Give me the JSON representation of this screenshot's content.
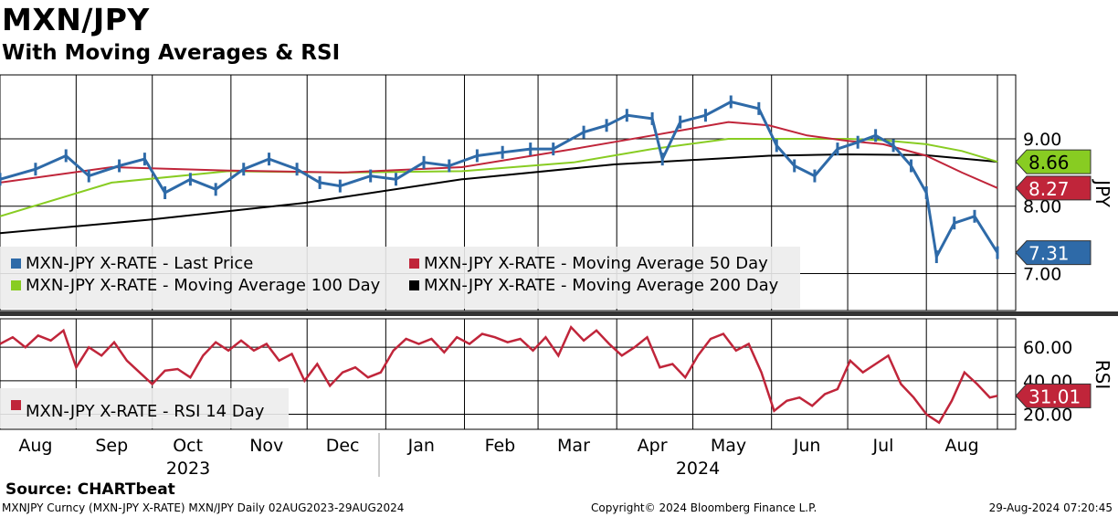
{
  "header": {
    "title": "MXN/JPY",
    "subtitle": "With Moving Averages & RSI"
  },
  "footer": {
    "source": "Source: CHARTbeat",
    "descriptor": "MXNJPY Curncy (MXN-JPY X-RATE) MXN/JPY  Daily 02AUG2023-29AUG2024",
    "copyright": "Copyright© 2024 Bloomberg Finance L.P.",
    "timestamp": "29-Aug-2024 07:20:45"
  },
  "colors": {
    "price": "#2e6aa8",
    "ma50": "#c0253a",
    "ma100": "#88cc22",
    "ma200": "#000000",
    "rsi": "#c0253a",
    "grid": "#000000"
  },
  "chart_data": [
    {
      "type": "line",
      "panel": "price",
      "y_axis_title": "JPY",
      "yticks": [
        7.0,
        8.0,
        9.0
      ],
      "ytick_labels": [
        "7.00",
        "8.00",
        "9.00"
      ],
      "ylim": [
        6.45,
        9.95
      ],
      "x_month_labels": [
        "Aug",
        "Sep",
        "Oct",
        "Nov",
        "Dec",
        "Jan",
        "Feb",
        "Mar",
        "Apr",
        "May",
        "Jun",
        "Jul",
        "Aug"
      ],
      "x_year_labels": [
        "2023",
        "2024"
      ],
      "legend": [
        {
          "label": "MXN-JPY X-RATE - Last Price",
          "color": "#2e6aa8"
        },
        {
          "label": "MXN-JPY X-RATE - Moving Average 50 Day",
          "color": "#c0253a"
        },
        {
          "label": "MXN-JPY X-RATE - Moving Average 100 Day",
          "color": "#88cc22"
        },
        {
          "label": "MXN-JPY X-RATE - Moving Average 200 Day",
          "color": "#000000"
        }
      ],
      "last_value_tags": [
        {
          "value": 8.66,
          "label": "8.66",
          "color": "#88cc22"
        },
        {
          "value": 8.27,
          "label": "8.27",
          "color": "#c0253a"
        },
        {
          "value": 7.31,
          "label": "7.31",
          "color": "#2e6aa8"
        }
      ],
      "series": [
        {
          "name": "MXN-JPY X-RATE - Last Price",
          "x": [
            "2023-08-02",
            "2023-08-16",
            "2023-08-28",
            "2023-09-06",
            "2023-09-18",
            "2023-09-28",
            "2023-10-06",
            "2023-10-16",
            "2023-10-26",
            "2023-11-06",
            "2023-11-16",
            "2023-11-27",
            "2023-12-06",
            "2023-12-14",
            "2023-12-26",
            "2024-01-05",
            "2024-01-16",
            "2024-01-26",
            "2024-02-06",
            "2024-02-16",
            "2024-02-27",
            "2024-03-07",
            "2024-03-19",
            "2024-03-28",
            "2024-04-05",
            "2024-04-15",
            "2024-04-19",
            "2024-04-26",
            "2024-05-06",
            "2024-05-16",
            "2024-05-27",
            "2024-06-03",
            "2024-06-10",
            "2024-06-18",
            "2024-06-27",
            "2024-07-05",
            "2024-07-12",
            "2024-07-19",
            "2024-07-26",
            "2024-08-01",
            "2024-08-05",
            "2024-08-12",
            "2024-08-20",
            "2024-08-29"
          ],
          "y": [
            8.4,
            8.55,
            8.75,
            8.45,
            8.6,
            8.7,
            8.2,
            8.4,
            8.25,
            8.55,
            8.7,
            8.55,
            8.35,
            8.3,
            8.45,
            8.4,
            8.65,
            8.6,
            8.75,
            8.8,
            8.85,
            8.85,
            9.1,
            9.2,
            9.35,
            9.3,
            8.7,
            9.25,
            9.35,
            9.55,
            9.45,
            8.9,
            8.6,
            8.45,
            8.85,
            8.95,
            9.05,
            8.9,
            8.6,
            8.2,
            7.25,
            7.75,
            7.85,
            7.31
          ]
        },
        {
          "name": "MXN-JPY X-RATE - Moving Average 50 Day",
          "x": [
            "2023-08-02",
            "2023-09-15",
            "2023-10-31",
            "2023-12-15",
            "2024-01-31",
            "2024-03-15",
            "2024-04-15",
            "2024-05-15",
            "2024-05-31",
            "2024-06-15",
            "2024-07-01",
            "2024-07-15",
            "2024-08-01",
            "2024-08-15",
            "2024-08-29"
          ],
          "y": [
            8.35,
            8.58,
            8.53,
            8.5,
            8.58,
            8.85,
            9.05,
            9.25,
            9.2,
            9.05,
            8.97,
            8.92,
            8.75,
            8.5,
            8.27
          ]
        },
        {
          "name": "MXN-JPY X-RATE - Moving Average 100 Day",
          "x": [
            "2023-08-02",
            "2023-09-15",
            "2023-10-31",
            "2023-12-15",
            "2024-01-31",
            "2024-03-15",
            "2024-04-15",
            "2024-05-15",
            "2024-06-15",
            "2024-07-01",
            "2024-07-15",
            "2024-08-01",
            "2024-08-15",
            "2024-08-29"
          ],
          "y": [
            7.85,
            8.35,
            8.52,
            8.5,
            8.52,
            8.65,
            8.85,
            9.0,
            9.0,
            9.0,
            8.98,
            8.92,
            8.82,
            8.66
          ]
        },
        {
          "name": "MXN-JPY X-RATE - Moving Average 200 Day",
          "x": [
            "2023-08-02",
            "2023-09-30",
            "2023-11-30",
            "2024-01-31",
            "2024-03-31",
            "2024-05-31",
            "2024-06-30",
            "2024-07-31",
            "2024-08-29"
          ],
          "y": [
            7.6,
            7.8,
            8.05,
            8.4,
            8.62,
            8.75,
            8.77,
            8.76,
            8.66
          ]
        }
      ]
    },
    {
      "type": "line",
      "panel": "rsi",
      "y_axis_title": "RSI",
      "yticks": [
        20,
        40,
        60
      ],
      "ytick_labels": [
        "20.00",
        "40.00",
        "60.00"
      ],
      "ylim": [
        11,
        77
      ],
      "legend": [
        {
          "label": "MXN-JPY X-RATE - RSI 14 Day",
          "color": "#c0253a"
        }
      ],
      "last_value_tags": [
        {
          "value": 31.01,
          "label": "31.01",
          "color": "#c0253a"
        }
      ],
      "series": [
        {
          "name": "MXN-JPY X-RATE - RSI 14 Day",
          "x": [
            "2023-08-02",
            "2023-08-07",
            "2023-08-12",
            "2023-08-17",
            "2023-08-22",
            "2023-08-27",
            "2023-09-01",
            "2023-09-06",
            "2023-09-11",
            "2023-09-16",
            "2023-09-21",
            "2023-09-26",
            "2023-10-01",
            "2023-10-06",
            "2023-10-11",
            "2023-10-16",
            "2023-10-21",
            "2023-10-26",
            "2023-10-31",
            "2023-11-05",
            "2023-11-10",
            "2023-11-15",
            "2023-11-20",
            "2023-11-25",
            "2023-11-30",
            "2023-12-05",
            "2023-12-10",
            "2023-12-15",
            "2023-12-20",
            "2023-12-25",
            "2023-12-30",
            "2024-01-04",
            "2024-01-09",
            "2024-01-14",
            "2024-01-19",
            "2024-01-24",
            "2024-01-29",
            "2024-02-03",
            "2024-02-08",
            "2024-02-13",
            "2024-02-18",
            "2024-02-23",
            "2024-02-28",
            "2024-03-04",
            "2024-03-09",
            "2024-03-14",
            "2024-03-19",
            "2024-03-24",
            "2024-03-29",
            "2024-04-03",
            "2024-04-08",
            "2024-04-13",
            "2024-04-18",
            "2024-04-23",
            "2024-04-28",
            "2024-05-03",
            "2024-05-08",
            "2024-05-13",
            "2024-05-18",
            "2024-05-23",
            "2024-05-28",
            "2024-06-02",
            "2024-06-07",
            "2024-06-12",
            "2024-06-17",
            "2024-06-22",
            "2024-06-27",
            "2024-07-02",
            "2024-07-07",
            "2024-07-12",
            "2024-07-17",
            "2024-07-22",
            "2024-07-27",
            "2024-08-01",
            "2024-08-06",
            "2024-08-11",
            "2024-08-16",
            "2024-08-21",
            "2024-08-26",
            "2024-08-29"
          ],
          "y": [
            62,
            66,
            60,
            67,
            64,
            70,
            48,
            60,
            55,
            63,
            52,
            45,
            38,
            46,
            47,
            42,
            55,
            63,
            58,
            64,
            58,
            62,
            52,
            56,
            40,
            50,
            37,
            45,
            48,
            42,
            45,
            58,
            65,
            62,
            65,
            57,
            66,
            62,
            68,
            66,
            63,
            65,
            58,
            66,
            55,
            72,
            64,
            70,
            62,
            55,
            60,
            66,
            48,
            50,
            42,
            55,
            65,
            68,
            58,
            62,
            45,
            22,
            28,
            30,
            25,
            32,
            35,
            52,
            45,
            50,
            55,
            38,
            30,
            20,
            15,
            28,
            45,
            38,
            30,
            31.01
          ]
        }
      ]
    }
  ]
}
